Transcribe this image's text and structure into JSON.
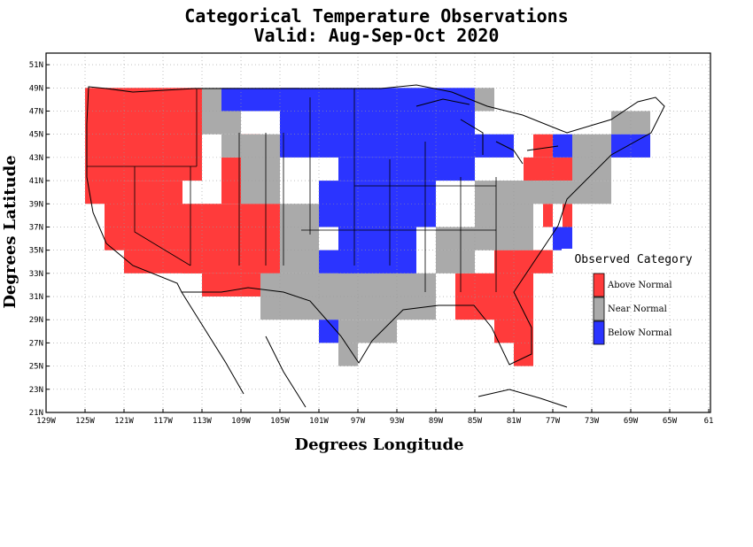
{
  "title_line1": "Categorical Temperature Observations",
  "title_line2": "Valid: Aug-Sep-Oct 2020",
  "xlabel": "Degrees Longitude",
  "ylabel": "Degrees Latitude",
  "colors": {
    "above": "#ff3b3b",
    "near": "#aaaaaa",
    "below": "#2b34ff",
    "grid": "#999999"
  },
  "legend": {
    "title": "Observed Category",
    "items": [
      {
        "key": "above",
        "label": "Above Normal"
      },
      {
        "key": "near",
        "label": "Near Normal"
      },
      {
        "key": "below",
        "label": "Below Normal"
      }
    ]
  },
  "chart_data": {
    "type": "heatmap",
    "x_range": [
      -129,
      -61
    ],
    "y_range": [
      21,
      52
    ],
    "lon_ticks": [
      -129,
      -125,
      -121,
      -117,
      -113,
      -109,
      -105,
      -101,
      -97,
      -93,
      -89,
      -85,
      -81,
      -77,
      -73,
      -69,
      -65,
      -61
    ],
    "lon_tick_labels": [
      "129W",
      "125W",
      "121W",
      "117W",
      "113W",
      "109W",
      "105W",
      "101W",
      "97W",
      "93W",
      "89W",
      "85W",
      "81W",
      "77W",
      "73W",
      "69W",
      "65W",
      "61"
    ],
    "lat_ticks": [
      21,
      23,
      25,
      27,
      29,
      31,
      33,
      35,
      37,
      39,
      41,
      43,
      45,
      47,
      49,
      51
    ],
    "lat_tick_labels": [
      "21N",
      "23N",
      "25N",
      "27N",
      "29N",
      "31N",
      "33N",
      "35N",
      "37N",
      "39N",
      "41N",
      "43N",
      "45N",
      "47N",
      "49N",
      "51N"
    ],
    "grid": true,
    "regions": [
      {
        "category": "above",
        "lon": [
          -125,
          -121
        ],
        "lat": [
          39,
          49
        ]
      },
      {
        "category": "above",
        "lon": [
          -121,
          -113
        ],
        "lat": [
          41,
          49
        ]
      },
      {
        "category": "above",
        "lon": [
          -123,
          -115
        ],
        "lat": [
          35,
          41
        ]
      },
      {
        "category": "above",
        "lon": [
          -121,
          -113
        ],
        "lat": [
          33,
          35
        ]
      },
      {
        "category": "above",
        "lon": [
          -115,
          -105
        ],
        "lat": [
          33,
          39
        ]
      },
      {
        "category": "above",
        "lon": [
          -113,
          -107
        ],
        "lat": [
          31,
          33
        ]
      },
      {
        "category": "above",
        "lon": [
          -111,
          -105
        ],
        "lat": [
          39,
          43
        ]
      },
      {
        "category": "above",
        "lon": [
          -109,
          -107
        ],
        "lat": [
          43,
          45
        ]
      },
      {
        "category": "above",
        "lon": [
          -87,
          -83
        ],
        "lat": [
          29,
          33
        ]
      },
      {
        "category": "above",
        "lon": [
          -83,
          -79
        ],
        "lat": [
          27,
          35
        ]
      },
      {
        "category": "above",
        "lon": [
          -81,
          -79
        ],
        "lat": [
          25,
          29
        ]
      },
      {
        "category": "above",
        "lon": [
          -79,
          -77
        ],
        "lat": [
          33,
          35
        ]
      },
      {
        "category": "above",
        "lon": [
          -80,
          -75
        ],
        "lat": [
          41,
          43
        ]
      },
      {
        "category": "above",
        "lon": [
          -79,
          -77
        ],
        "lat": [
          43,
          45
        ]
      },
      {
        "category": "above",
        "lon": [
          -76,
          -75
        ],
        "lat": [
          37,
          39
        ]
      },
      {
        "category": "above",
        "lon": [
          -78,
          -77
        ],
        "lat": [
          37,
          39
        ]
      },
      {
        "category": "near",
        "lon": [
          -113,
          -109
        ],
        "lat": [
          45,
          49
        ]
      },
      {
        "category": "near",
        "lon": [
          -111,
          -109
        ],
        "lat": [
          43,
          45
        ]
      },
      {
        "category": "near",
        "lon": [
          -109,
          -105
        ],
        "lat": [
          39,
          45
        ]
      },
      {
        "category": "near",
        "lon": [
          -105,
          -101
        ],
        "lat": [
          33,
          39
        ]
      },
      {
        "category": "near",
        "lon": [
          -107,
          -89
        ],
        "lat": [
          29,
          33
        ]
      },
      {
        "category": "near",
        "lon": [
          -99,
          -93
        ],
        "lat": [
          27,
          29
        ]
      },
      {
        "category": "near",
        "lon": [
          -99,
          -97
        ],
        "lat": [
          25,
          27
        ]
      },
      {
        "category": "near",
        "lon": [
          -89,
          -79
        ],
        "lat": [
          35,
          37
        ]
      },
      {
        "category": "near",
        "lon": [
          -89,
          -85
        ],
        "lat": [
          33,
          35
        ]
      },
      {
        "category": "near",
        "lon": [
          -85,
          -79
        ],
        "lat": [
          37,
          41
        ]
      },
      {
        "category": "near",
        "lon": [
          -83,
          -71
        ],
        "lat": [
          39,
          41
        ]
      },
      {
        "category": "near",
        "lon": [
          -75,
          -71
        ],
        "lat": [
          41,
          45
        ]
      },
      {
        "category": "near",
        "lon": [
          -71,
          -67
        ],
        "lat": [
          45,
          47
        ]
      },
      {
        "category": "near",
        "lon": [
          -85,
          -83
        ],
        "lat": [
          47,
          49
        ]
      },
      {
        "category": "below",
        "lon": [
          -111,
          -103
        ],
        "lat": [
          47,
          49
        ]
      },
      {
        "category": "below",
        "lon": [
          -105,
          -85
        ],
        "lat": [
          43,
          49
        ]
      },
      {
        "category": "below",
        "lon": [
          -99,
          -85
        ],
        "lat": [
          41,
          43
        ]
      },
      {
        "category": "below",
        "lon": [
          -101,
          -89
        ],
        "lat": [
          37,
          41
        ]
      },
      {
        "category": "below",
        "lon": [
          -99,
          -91
        ],
        "lat": [
          33,
          37
        ]
      },
      {
        "category": "below",
        "lon": [
          -101,
          -99
        ],
        "lat": [
          33,
          35
        ]
      },
      {
        "category": "below",
        "lon": [
          -101,
          -99
        ],
        "lat": [
          27,
          29
        ]
      },
      {
        "category": "below",
        "lon": [
          -85,
          -81
        ],
        "lat": [
          43,
          45
        ]
      },
      {
        "category": "below",
        "lon": [
          -77,
          -75
        ],
        "lat": [
          43,
          45
        ]
      },
      {
        "category": "below",
        "lon": [
          -71,
          -67
        ],
        "lat": [
          43,
          45
        ]
      },
      {
        "category": "below",
        "lon": [
          -77,
          -75
        ],
        "lat": [
          35,
          37
        ]
      }
    ]
  }
}
